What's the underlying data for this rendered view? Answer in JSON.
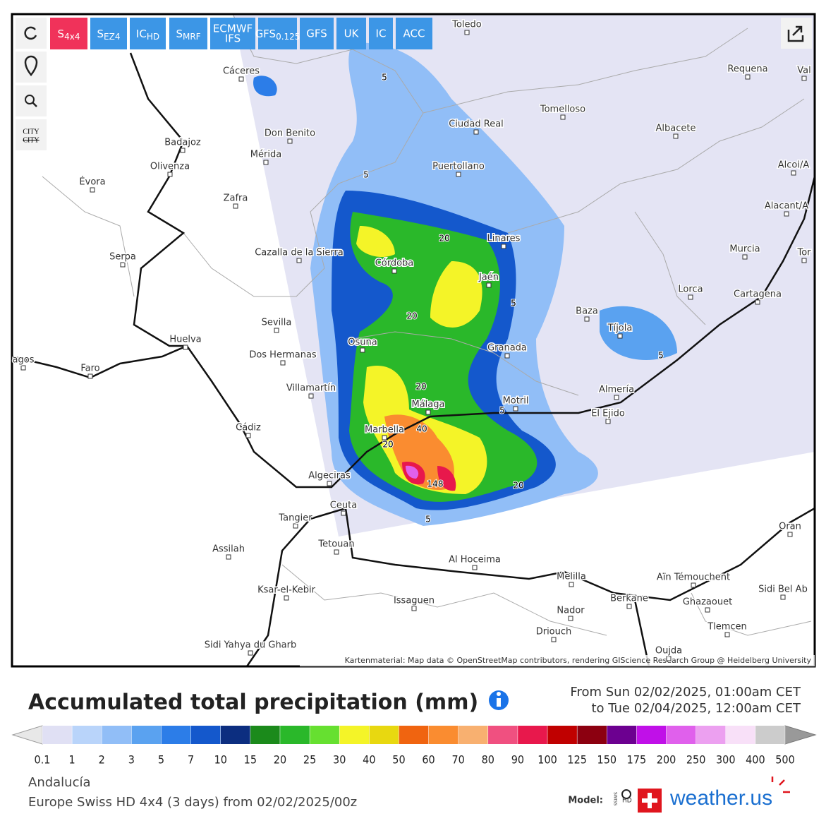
{
  "toolbar": [
    {
      "main": "S",
      "sub": "4x4"
    },
    {
      "main": "S",
      "sub": "EZ4"
    },
    {
      "main": "IC",
      "sub": "HD"
    },
    {
      "main": "S",
      "sub": "MRF"
    },
    {
      "main": "ECMWF",
      "sub": "IFS"
    },
    {
      "main": "GFS",
      "sub": "0.125"
    },
    {
      "main": "GFS"
    },
    {
      "main": "UK"
    },
    {
      "main": "IC"
    },
    {
      "main": "ACC"
    }
  ],
  "city_toggle": [
    "CITY",
    "CITY"
  ],
  "cities": [
    "Toledo",
    "Cáceres",
    "Requena",
    "Val",
    "Tomelloso",
    "Ciudad Real",
    "Don Benito",
    "Mérida",
    "Badajoz",
    "Albacete",
    "Olivenza",
    "Puertollano",
    "Alcoi/A",
    "Évora",
    "Zafra",
    "Alacant/A",
    "Linares",
    "Cazalla de la Sierra",
    "Murcia",
    "Córdoba",
    "Serpa",
    "Tor",
    "Jaén",
    "Lorca",
    "Cartagena",
    "Baza",
    "Sevilla",
    "Tíjola",
    "Huelva",
    "Osuna",
    "Granada",
    "Dos Hermanas",
    "agos",
    "Faro",
    "Villamartín",
    "Almería",
    "Motril",
    "Málaga",
    "El Ejido",
    "Cádiz",
    "Marbella",
    "Algeciras",
    "Ceuta",
    "Tangier",
    "Oran",
    "Tetouan",
    "Assilah",
    "Al Hoceima",
    "Melilla",
    "Aïn Témouchent",
    "Sidi Bel Ab",
    "Ksar-el-Kebir",
    "Issaguen",
    "Berkane",
    "Ghazaouet",
    "Nador",
    "Tlemcen",
    "Driouch",
    "Sidi Yahya du Gharb",
    "Oujda"
  ],
  "contour_labels": [
    5,
    5,
    20,
    5,
    20,
    5,
    20,
    5,
    40,
    20,
    148,
    20,
    5
  ],
  "attribution": "Kartenmaterial: Map data © OpenStreetMap contributors, rendering GIScience Research Group @ Heidelberg University",
  "title": "Accumulated total precipitation (mm)",
  "period": [
    "From Sun 02/02/2025, 01:00am CET",
    "to Tue 02/04/2025, 12:00am CET"
  ],
  "legend": {
    "ticks": [
      0.1,
      1,
      2,
      3,
      5,
      7,
      10,
      15,
      20,
      25,
      30,
      40,
      50,
      60,
      70,
      80,
      90,
      100,
      125,
      150,
      175,
      200,
      250,
      300,
      400,
      500
    ],
    "colors": [
      "#e0e0f4",
      "#b9d4fa",
      "#91bef7",
      "#5aa2f0",
      "#2c7de8",
      "#1458cc",
      "#0c2e80",
      "#1b8a1b",
      "#2ab82a",
      "#66e030",
      "#f4f428",
      "#e8d810",
      "#f06410",
      "#fa8c30",
      "#f8b070",
      "#f05080",
      "#e8184c",
      "#c00000",
      "#8c0010",
      "#6c0090",
      "#c010e8",
      "#e060ec",
      "#eca0f0",
      "#f8e0f8",
      "#cccccc"
    ]
  },
  "region": "Andalucía",
  "model_run": "Europe Swiss HD 4x4 (3 days) from 02/02/2025/00z",
  "model_label": "Model:",
  "model_badge": [
    "SWISS",
    "HD"
  ],
  "brand": "weather.us"
}
